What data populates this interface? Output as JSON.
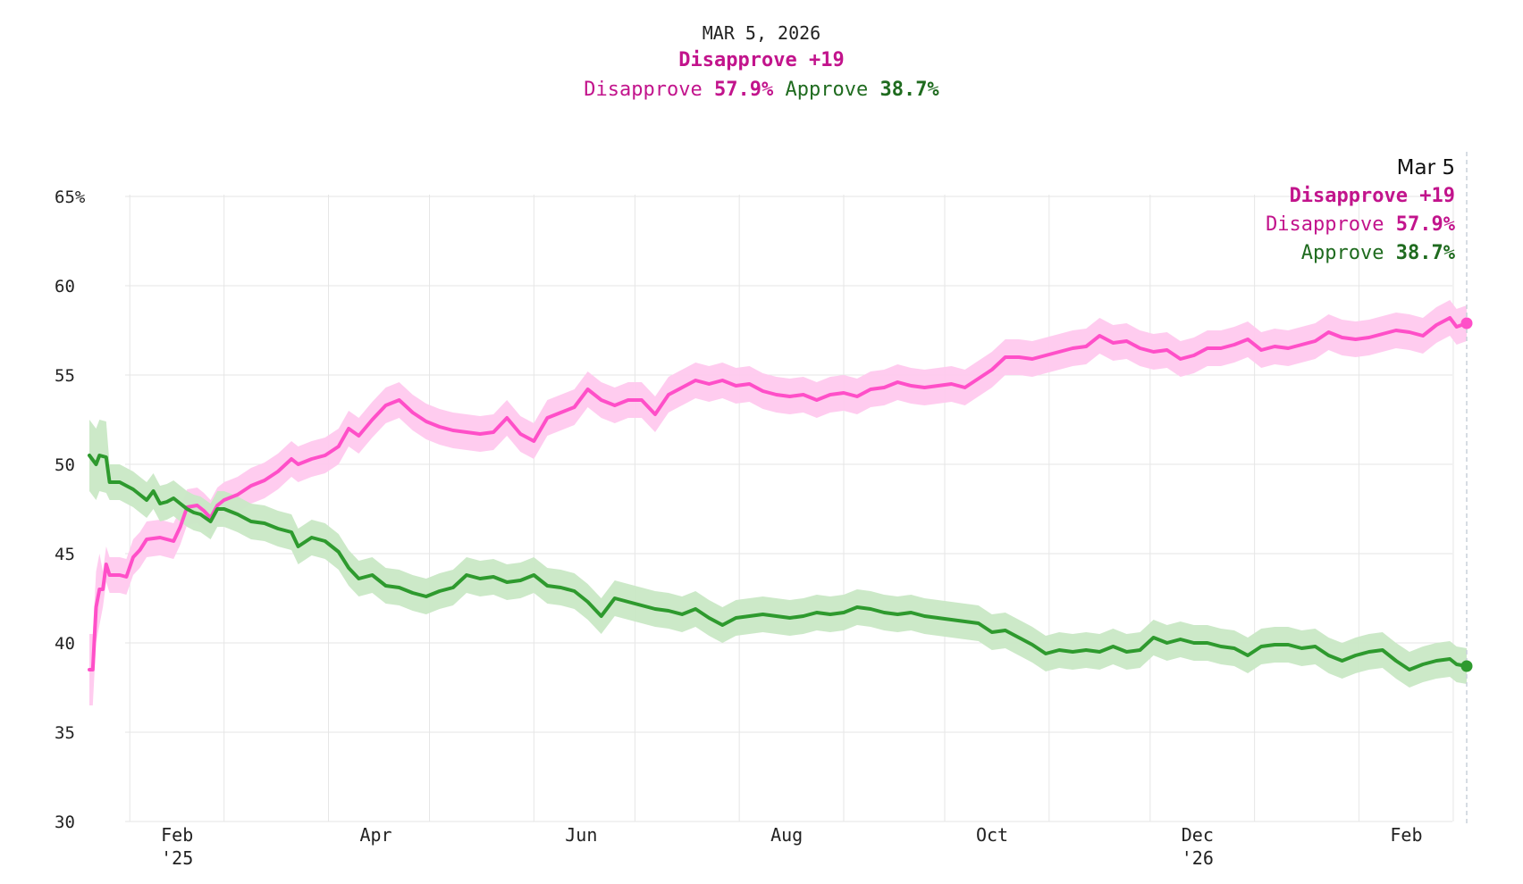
{
  "header": {
    "date": "MAR 5, 2026",
    "lead": "Disapprove +19",
    "disapprove_label": "Disapprove",
    "disapprove_value": "57.9%",
    "approve_label": "Approve",
    "approve_value": "38.7%"
  },
  "tooltip": {
    "date": "Mar 5",
    "lead": "Disapprove +19",
    "disapprove_label": "Disapprove",
    "disapprove_value": "57.9%",
    "approve_label": "Approve",
    "approve_value": "38.7%"
  },
  "colors": {
    "disapprove_line": "#ff4fc8",
    "disapprove_band": "#ffc9ee",
    "disapprove_text": "#c2148c",
    "approve_line": "#2e9a2e",
    "approve_band": "#c9e8c5",
    "approve_text": "#1f6b1f",
    "grid": "#e6e6e6"
  },
  "chart_data": {
    "type": "line",
    "ylim": [
      30,
      65
    ],
    "xlim": [
      "2025-01-20",
      "2026-03-05"
    ],
    "yticks": [
      {
        "value": 65,
        "label": "65%"
      },
      {
        "value": 60,
        "label": "60"
      },
      {
        "value": 55,
        "label": "55"
      },
      {
        "value": 50,
        "label": "50"
      },
      {
        "value": 45,
        "label": "45"
      },
      {
        "value": 40,
        "label": "40"
      },
      {
        "value": 35,
        "label": "35"
      },
      {
        "value": 30,
        "label": "30"
      }
    ],
    "xticks": [
      {
        "date": "2025-02-01",
        "label": "Feb",
        "sublabel": "'25"
      },
      {
        "date": "2025-04-01",
        "label": "Apr"
      },
      {
        "date": "2025-06-01",
        "label": "Jun"
      },
      {
        "date": "2025-08-01",
        "label": "Aug"
      },
      {
        "date": "2025-10-01",
        "label": "Oct"
      },
      {
        "date": "2025-12-01",
        "label": "Dec",
        "sublabel": "'26"
      },
      {
        "date": "2026-02-01",
        "label": "Feb"
      }
    ],
    "monthly_grid": [
      "2025-02-01",
      "2025-03-01",
      "2025-04-01",
      "2025-05-01",
      "2025-06-01",
      "2025-07-01",
      "2025-08-01",
      "2025-09-01",
      "2025-10-01",
      "2025-11-01",
      "2025-12-01",
      "2026-01-01",
      "2026-02-01",
      "2026-03-01"
    ],
    "series": [
      {
        "name": "Disapprove",
        "band": 1.0,
        "points": [
          [
            "2025-01-20",
            38.5
          ],
          [
            "2025-01-21",
            38.5
          ],
          [
            "2025-01-22",
            42.0
          ],
          [
            "2025-01-23",
            43.0
          ],
          [
            "2025-01-24",
            43.0
          ],
          [
            "2025-01-25",
            44.4
          ],
          [
            "2025-01-26",
            43.8
          ],
          [
            "2025-01-29",
            43.8
          ],
          [
            "2025-01-31",
            43.7
          ],
          [
            "2025-02-02",
            44.8
          ],
          [
            "2025-02-04",
            45.2
          ],
          [
            "2025-02-06",
            45.8
          ],
          [
            "2025-02-10",
            45.9
          ],
          [
            "2025-02-14",
            45.7
          ],
          [
            "2025-02-16",
            46.5
          ],
          [
            "2025-02-18",
            47.6
          ],
          [
            "2025-02-21",
            47.7
          ],
          [
            "2025-02-23",
            47.4
          ],
          [
            "2025-02-25",
            47.0
          ],
          [
            "2025-02-27",
            47.7
          ],
          [
            "2025-03-01",
            48.0
          ],
          [
            "2025-03-05",
            48.3
          ],
          [
            "2025-03-09",
            48.8
          ],
          [
            "2025-03-13",
            49.1
          ],
          [
            "2025-03-17",
            49.6
          ],
          [
            "2025-03-21",
            50.3
          ],
          [
            "2025-03-23",
            50.0
          ],
          [
            "2025-03-27",
            50.3
          ],
          [
            "2025-03-31",
            50.5
          ],
          [
            "2025-04-04",
            51.0
          ],
          [
            "2025-04-07",
            52.0
          ],
          [
            "2025-04-10",
            51.6
          ],
          [
            "2025-04-14",
            52.5
          ],
          [
            "2025-04-18",
            53.3
          ],
          [
            "2025-04-22",
            53.6
          ],
          [
            "2025-04-26",
            52.9
          ],
          [
            "2025-04-30",
            52.4
          ],
          [
            "2025-05-04",
            52.1
          ],
          [
            "2025-05-08",
            51.9
          ],
          [
            "2025-05-12",
            51.8
          ],
          [
            "2025-05-16",
            51.7
          ],
          [
            "2025-05-20",
            51.8
          ],
          [
            "2025-05-24",
            52.6
          ],
          [
            "2025-05-28",
            51.7
          ],
          [
            "2025-06-01",
            51.3
          ],
          [
            "2025-06-05",
            52.6
          ],
          [
            "2025-06-09",
            52.9
          ],
          [
            "2025-06-13",
            53.2
          ],
          [
            "2025-06-17",
            54.2
          ],
          [
            "2025-06-21",
            53.6
          ],
          [
            "2025-06-25",
            53.3
          ],
          [
            "2025-06-29",
            53.6
          ],
          [
            "2025-07-03",
            53.6
          ],
          [
            "2025-07-07",
            52.8
          ],
          [
            "2025-07-11",
            53.9
          ],
          [
            "2025-07-15",
            54.3
          ],
          [
            "2025-07-19",
            54.7
          ],
          [
            "2025-07-23",
            54.5
          ],
          [
            "2025-07-27",
            54.7
          ],
          [
            "2025-07-31",
            54.4
          ],
          [
            "2025-08-04",
            54.5
          ],
          [
            "2025-08-08",
            54.1
          ],
          [
            "2025-08-12",
            53.9
          ],
          [
            "2025-08-16",
            53.8
          ],
          [
            "2025-08-20",
            53.9
          ],
          [
            "2025-08-24",
            53.6
          ],
          [
            "2025-08-28",
            53.9
          ],
          [
            "2025-09-01",
            54.0
          ],
          [
            "2025-09-05",
            53.8
          ],
          [
            "2025-09-09",
            54.2
          ],
          [
            "2025-09-13",
            54.3
          ],
          [
            "2025-09-17",
            54.6
          ],
          [
            "2025-09-21",
            54.4
          ],
          [
            "2025-09-25",
            54.3
          ],
          [
            "2025-09-29",
            54.4
          ],
          [
            "2025-10-03",
            54.5
          ],
          [
            "2025-10-07",
            54.3
          ],
          [
            "2025-10-11",
            54.8
          ],
          [
            "2025-10-15",
            55.3
          ],
          [
            "2025-10-19",
            56.0
          ],
          [
            "2025-10-23",
            56.0
          ],
          [
            "2025-10-27",
            55.9
          ],
          [
            "2025-10-31",
            56.1
          ],
          [
            "2025-11-04",
            56.3
          ],
          [
            "2025-11-08",
            56.5
          ],
          [
            "2025-11-12",
            56.6
          ],
          [
            "2025-11-16",
            57.2
          ],
          [
            "2025-11-20",
            56.8
          ],
          [
            "2025-11-24",
            56.9
          ],
          [
            "2025-11-28",
            56.5
          ],
          [
            "2025-12-02",
            56.3
          ],
          [
            "2025-12-06",
            56.4
          ],
          [
            "2025-12-10",
            55.9
          ],
          [
            "2025-12-14",
            56.1
          ],
          [
            "2025-12-18",
            56.5
          ],
          [
            "2025-12-22",
            56.5
          ],
          [
            "2025-12-26",
            56.7
          ],
          [
            "2025-12-30",
            57.0
          ],
          [
            "2026-01-03",
            56.4
          ],
          [
            "2026-01-07",
            56.6
          ],
          [
            "2026-01-11",
            56.5
          ],
          [
            "2026-01-15",
            56.7
          ],
          [
            "2026-01-19",
            56.9
          ],
          [
            "2026-01-23",
            57.4
          ],
          [
            "2026-01-27",
            57.1
          ],
          [
            "2026-01-31",
            57.0
          ],
          [
            "2026-02-04",
            57.1
          ],
          [
            "2026-02-08",
            57.3
          ],
          [
            "2026-02-12",
            57.5
          ],
          [
            "2026-02-16",
            57.4
          ],
          [
            "2026-02-20",
            57.2
          ],
          [
            "2026-02-24",
            57.8
          ],
          [
            "2026-02-28",
            58.2
          ],
          [
            "2026-03-02",
            57.7
          ],
          [
            "2026-03-05",
            57.9
          ]
        ]
      },
      {
        "name": "Approve",
        "band": 1.0,
        "points": [
          [
            "2025-01-20",
            50.5
          ],
          [
            "2025-01-22",
            50.0
          ],
          [
            "2025-01-23",
            50.5
          ],
          [
            "2025-01-25",
            50.4
          ],
          [
            "2025-01-26",
            49.0
          ],
          [
            "2025-01-29",
            49.0
          ],
          [
            "2025-01-31",
            48.8
          ],
          [
            "2025-02-02",
            48.6
          ],
          [
            "2025-02-04",
            48.3
          ],
          [
            "2025-02-06",
            48.0
          ],
          [
            "2025-02-08",
            48.5
          ],
          [
            "2025-02-10",
            47.8
          ],
          [
            "2025-02-12",
            47.9
          ],
          [
            "2025-02-14",
            48.1
          ],
          [
            "2025-02-16",
            47.8
          ],
          [
            "2025-02-18",
            47.5
          ],
          [
            "2025-02-20",
            47.3
          ],
          [
            "2025-02-22",
            47.2
          ],
          [
            "2025-02-25",
            46.8
          ],
          [
            "2025-02-27",
            47.5
          ],
          [
            "2025-03-01",
            47.5
          ],
          [
            "2025-03-05",
            47.2
          ],
          [
            "2025-03-09",
            46.8
          ],
          [
            "2025-03-13",
            46.7
          ],
          [
            "2025-03-17",
            46.4
          ],
          [
            "2025-03-21",
            46.2
          ],
          [
            "2025-03-23",
            45.4
          ],
          [
            "2025-03-27",
            45.9
          ],
          [
            "2025-03-31",
            45.7
          ],
          [
            "2025-04-04",
            45.1
          ],
          [
            "2025-04-07",
            44.2
          ],
          [
            "2025-04-10",
            43.6
          ],
          [
            "2025-04-14",
            43.8
          ],
          [
            "2025-04-18",
            43.2
          ],
          [
            "2025-04-22",
            43.1
          ],
          [
            "2025-04-26",
            42.8
          ],
          [
            "2025-04-30",
            42.6
          ],
          [
            "2025-05-04",
            42.9
          ],
          [
            "2025-05-08",
            43.1
          ],
          [
            "2025-05-12",
            43.8
          ],
          [
            "2025-05-16",
            43.6
          ],
          [
            "2025-05-20",
            43.7
          ],
          [
            "2025-05-24",
            43.4
          ],
          [
            "2025-05-28",
            43.5
          ],
          [
            "2025-06-01",
            43.8
          ],
          [
            "2025-06-05",
            43.2
          ],
          [
            "2025-06-09",
            43.1
          ],
          [
            "2025-06-13",
            42.9
          ],
          [
            "2025-06-17",
            42.3
          ],
          [
            "2025-06-21",
            41.5
          ],
          [
            "2025-06-25",
            42.5
          ],
          [
            "2025-06-29",
            42.3
          ],
          [
            "2025-07-03",
            42.1
          ],
          [
            "2025-07-07",
            41.9
          ],
          [
            "2025-07-11",
            41.8
          ],
          [
            "2025-07-15",
            41.6
          ],
          [
            "2025-07-19",
            41.9
          ],
          [
            "2025-07-23",
            41.4
          ],
          [
            "2025-07-27",
            41.0
          ],
          [
            "2025-07-31",
            41.4
          ],
          [
            "2025-08-04",
            41.5
          ],
          [
            "2025-08-08",
            41.6
          ],
          [
            "2025-08-12",
            41.5
          ],
          [
            "2025-08-16",
            41.4
          ],
          [
            "2025-08-20",
            41.5
          ],
          [
            "2025-08-24",
            41.7
          ],
          [
            "2025-08-28",
            41.6
          ],
          [
            "2025-09-01",
            41.7
          ],
          [
            "2025-09-05",
            42.0
          ],
          [
            "2025-09-09",
            41.9
          ],
          [
            "2025-09-13",
            41.7
          ],
          [
            "2025-09-17",
            41.6
          ],
          [
            "2025-09-21",
            41.7
          ],
          [
            "2025-09-25",
            41.5
          ],
          [
            "2025-09-29",
            41.4
          ],
          [
            "2025-10-03",
            41.3
          ],
          [
            "2025-10-07",
            41.2
          ],
          [
            "2025-10-11",
            41.1
          ],
          [
            "2025-10-15",
            40.6
          ],
          [
            "2025-10-19",
            40.7
          ],
          [
            "2025-10-23",
            40.3
          ],
          [
            "2025-10-27",
            39.9
          ],
          [
            "2025-10-31",
            39.4
          ],
          [
            "2025-11-04",
            39.6
          ],
          [
            "2025-11-08",
            39.5
          ],
          [
            "2025-11-12",
            39.6
          ],
          [
            "2025-11-16",
            39.5
          ],
          [
            "2025-11-20",
            39.8
          ],
          [
            "2025-11-24",
            39.5
          ],
          [
            "2025-11-28",
            39.6
          ],
          [
            "2025-12-02",
            40.3
          ],
          [
            "2025-12-06",
            40.0
          ],
          [
            "2025-12-10",
            40.2
          ],
          [
            "2025-12-14",
            40.0
          ],
          [
            "2025-12-18",
            40.0
          ],
          [
            "2025-12-22",
            39.8
          ],
          [
            "2025-12-26",
            39.7
          ],
          [
            "2025-12-30",
            39.3
          ],
          [
            "2026-01-03",
            39.8
          ],
          [
            "2026-01-07",
            39.9
          ],
          [
            "2026-01-11",
            39.9
          ],
          [
            "2026-01-15",
            39.7
          ],
          [
            "2026-01-19",
            39.8
          ],
          [
            "2026-01-23",
            39.3
          ],
          [
            "2026-01-27",
            39.0
          ],
          [
            "2026-01-31",
            39.3
          ],
          [
            "2026-02-04",
            39.5
          ],
          [
            "2026-02-08",
            39.6
          ],
          [
            "2026-02-12",
            39.0
          ],
          [
            "2026-02-16",
            38.5
          ],
          [
            "2026-02-20",
            38.8
          ],
          [
            "2026-02-24",
            39.0
          ],
          [
            "2026-02-28",
            39.1
          ],
          [
            "2026-03-02",
            38.8
          ],
          [
            "2026-03-05",
            38.7
          ]
        ]
      }
    ]
  }
}
